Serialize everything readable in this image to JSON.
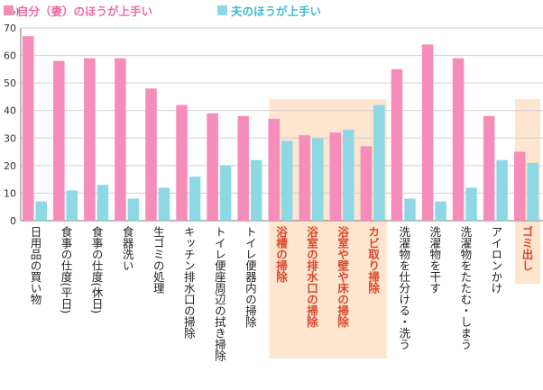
{
  "chart_data": {
    "type": "bar",
    "unit": "(%)",
    "categories": [
      "日用品の買い物",
      "食事の仕度(平日)",
      "食事の仕度(休日)",
      "食器洗い",
      "生ゴミの処理",
      "キッチン排水口の掃除",
      "トイレ便座周辺の拭き掃除",
      "トイレ便器内の掃除",
      "浴槽の掃除",
      "浴室の排水口の掃除",
      "浴室や壁や床の掃除",
      "カビ取り掃除",
      "洗濯物を仕分ける・洗う",
      "洗濯物を干す",
      "洗濯物をたたむ・しまう",
      "アイロンかけ",
      "ゴミ出し"
    ],
    "highlighted_categories": [
      "浴槽の掃除",
      "浴室の排水口の掃除",
      "浴室や壁や床の掃除",
      "カビ取り掃除",
      "ゴミ出し"
    ],
    "series": [
      {
        "name": "自分（妻）のほうが上手い",
        "color": "#f58cb9",
        "values": [
          67,
          58,
          59,
          59,
          48,
          42,
          39,
          38,
          37,
          31,
          32,
          27,
          55,
          64,
          59,
          38,
          25
        ]
      },
      {
        "name": "夫のほうが上手い",
        "color": "#8dd8e4",
        "values": [
          7,
          11,
          13,
          8,
          12,
          16,
          20,
          22,
          29,
          30,
          33,
          42,
          8,
          7,
          12,
          22,
          21
        ]
      }
    ],
    "ylim": [
      0,
      70
    ],
    "yticks": [
      0,
      10,
      20,
      30,
      40,
      50,
      60,
      70
    ],
    "grid": true,
    "legend_position": "top-left",
    "highlight_color": "#fde5cf",
    "highlight_text_color": "#d9482b"
  }
}
